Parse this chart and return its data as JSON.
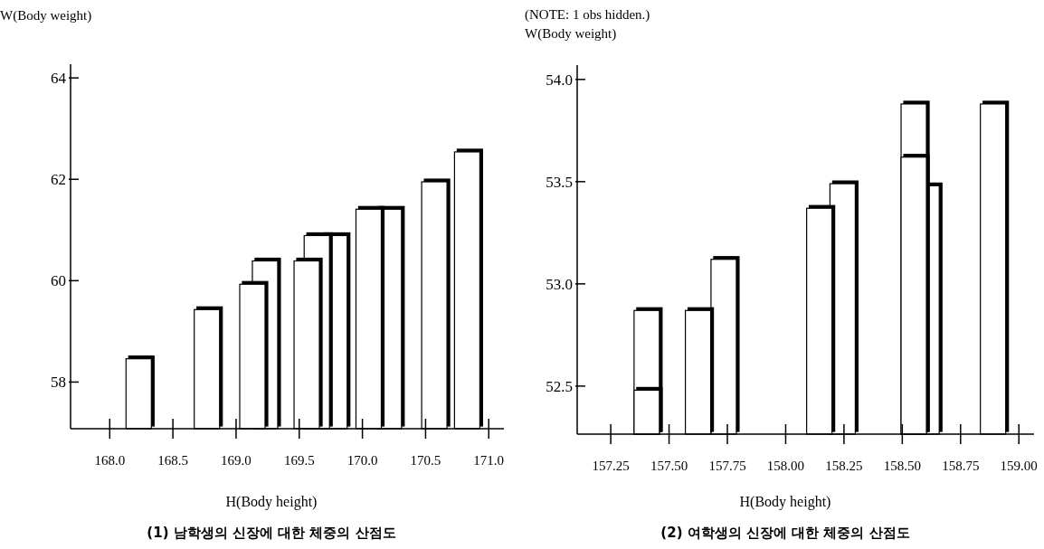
{
  "chart_data": [
    {
      "type": "bar",
      "title": "(1) 남학생의 신장에 대한 체중의 산점도",
      "xlabel": "H(Body height)",
      "ylabel": "W(Body weight)",
      "color": "#ffffff",
      "x": [
        168.24,
        168.78,
        169.14,
        169.24,
        169.57,
        169.65,
        169.79,
        170.06,
        170.22,
        170.58,
        170.84
      ],
      "values": [
        1.38,
        2.35,
        2.85,
        3.31,
        3.31,
        3.81,
        3.81,
        4.33,
        4.33,
        4.87,
        5.46
      ],
      "base": [
        57.08,
        57.08,
        57.08,
        57.08,
        57.08,
        57.08,
        57.08,
        57.08,
        57.08,
        57.08,
        57.08
      ],
      "xlim": [
        167.69,
        171.12
      ],
      "ylim": [
        57.08,
        64.27
      ],
      "xticks": [
        {
          "value": 168,
          "label": "168.0"
        },
        {
          "value": 168.5,
          "label": "168.5"
        },
        {
          "value": 169,
          "label": "169.0"
        },
        {
          "value": 169.5,
          "label": "169.5"
        },
        {
          "value": 170,
          "label": "170.0"
        },
        {
          "value": 170.5,
          "label": "170.5"
        },
        {
          "value": 171,
          "label": "171.0"
        }
      ],
      "yticks": [
        58,
        60,
        62,
        64
      ]
    },
    {
      "type": "bar",
      "title": "(2) 여학생의 신장에 대한 체중의 산점도",
      "xlabel": "H(Body height)",
      "ylabel": "W(Body weight)",
      "annotations": [
        "(NOTE: 1 obs hidden.)"
      ],
      "series": [
        {
          "color": "#ffffff",
          "x": [
            157.41,
            157.63,
            157.74,
            158.15,
            158.25,
            158.555,
            158.61,
            158.895
          ],
          "values": [
            0.605,
            0.605,
            0.855,
            1.105,
            1.225,
            1.615,
            1.215,
            1.615
          ],
          "base": [
            52.265,
            52.265,
            52.265,
            52.265,
            52.265,
            52.265,
            52.265,
            52.265
          ]
        },
        {
          "color": "#ffffff",
          "x": [
            157.41,
            158.555
          ],
          "values": [
            0.215,
            1.355
          ],
          "base": [
            52.265,
            52.265
          ]
        }
      ],
      "xlim": [
        157.106,
        159.065
      ],
      "ylim": [
        52.265,
        54.07
      ],
      "xticks": [
        {
          "value": 157.25,
          "label": "157.25"
        },
        {
          "value": 157.5,
          "label": "157.50"
        },
        {
          "value": 157.75,
          "label": "157.75"
        },
        {
          "value": 158,
          "label": "158.00"
        },
        {
          "value": 158.25,
          "label": "158.25"
        },
        {
          "value": 158.5,
          "label": "158.50"
        },
        {
          "value": 158.75,
          "label": "158.75"
        },
        {
          "value": 159,
          "label": "159.00"
        }
      ],
      "yticks": [
        {
          "value": 52.5,
          "label": "52.5"
        },
        {
          "value": 53,
          "label": "53.0"
        },
        {
          "value": 53.5,
          "label": "53.5"
        },
        {
          "value": 54,
          "label": "54.0"
        }
      ]
    }
  ]
}
